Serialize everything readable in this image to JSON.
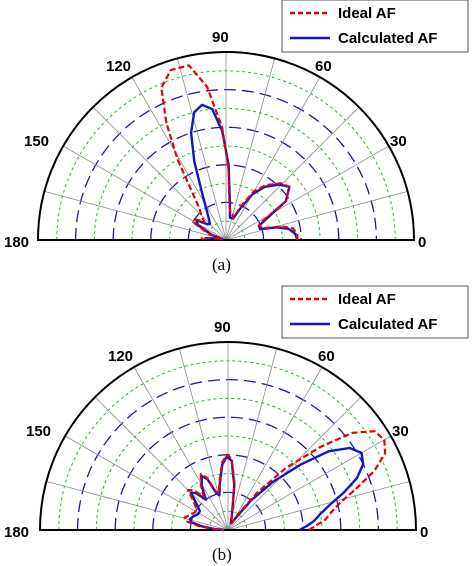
{
  "chart_data": [
    {
      "type": "polar",
      "panel": "(a)",
      "angle_labels": [
        "0",
        "30",
        "60",
        "90",
        "120",
        "150",
        "180"
      ],
      "legend": [
        "Ideal AF",
        "Calculated AF"
      ],
      "theta_range_deg": [
        0,
        180
      ],
      "r_range": [
        0,
        1
      ],
      "ideal_af": [
        {
          "theta": 0,
          "r": 0.38
        },
        {
          "theta": 5,
          "r": 0.38
        },
        {
          "theta": 10,
          "r": 0.36
        },
        {
          "theta": 14,
          "r": 0.3
        },
        {
          "theta": 16,
          "r": 0.24
        },
        {
          "theta": 18,
          "r": 0.2
        },
        {
          "theta": 20,
          "r": 0.2
        },
        {
          "theta": 23,
          "r": 0.19
        },
        {
          "theta": 26,
          "r": 0.2
        },
        {
          "theta": 33,
          "r": 0.38
        },
        {
          "theta": 40,
          "r": 0.44
        },
        {
          "theta": 46,
          "r": 0.42
        },
        {
          "theta": 54,
          "r": 0.36
        },
        {
          "theta": 60,
          "r": 0.3
        },
        {
          "theta": 66,
          "r": 0.2
        },
        {
          "theta": 72,
          "r": 0.12
        },
        {
          "theta": 76,
          "r": 0.14
        },
        {
          "theta": 80,
          "r": 0.14
        },
        {
          "theta": 84,
          "r": 0.18
        },
        {
          "theta": 88,
          "r": 0.38
        },
        {
          "theta": 92,
          "r": 0.6
        },
        {
          "theta": 97,
          "r": 0.82
        },
        {
          "theta": 102,
          "r": 0.95
        },
        {
          "theta": 108,
          "r": 0.95
        },
        {
          "theta": 113,
          "r": 0.88
        },
        {
          "theta": 117,
          "r": 0.7
        },
        {
          "theta": 121,
          "r": 0.5
        },
        {
          "theta": 125,
          "r": 0.32
        },
        {
          "theta": 130,
          "r": 0.22
        },
        {
          "theta": 136,
          "r": 0.18
        },
        {
          "theta": 140,
          "r": 0.15
        },
        {
          "theta": 146,
          "r": 0.2
        },
        {
          "theta": 152,
          "r": 0.19
        },
        {
          "theta": 160,
          "r": 0.1
        },
        {
          "theta": 165,
          "r": 0.02
        },
        {
          "theta": 170,
          "r": 0.05
        },
        {
          "theta": 175,
          "r": 0.13
        },
        {
          "theta": 180,
          "r": 0.12
        }
      ],
      "calculated_af": [
        {
          "theta": 0,
          "r": 0.38
        },
        {
          "theta": 5,
          "r": 0.37
        },
        {
          "theta": 10,
          "r": 0.34
        },
        {
          "theta": 14,
          "r": 0.28
        },
        {
          "theta": 16,
          "r": 0.22
        },
        {
          "theta": 18,
          "r": 0.19
        },
        {
          "theta": 20,
          "r": 0.19
        },
        {
          "theta": 23,
          "r": 0.19
        },
        {
          "theta": 26,
          "r": 0.22
        },
        {
          "theta": 33,
          "r": 0.38
        },
        {
          "theta": 40,
          "r": 0.44
        },
        {
          "theta": 46,
          "r": 0.41
        },
        {
          "theta": 54,
          "r": 0.35
        },
        {
          "theta": 60,
          "r": 0.28
        },
        {
          "theta": 66,
          "r": 0.18
        },
        {
          "theta": 72,
          "r": 0.12
        },
        {
          "theta": 76,
          "r": 0.12
        },
        {
          "theta": 80,
          "r": 0.12
        },
        {
          "theta": 84,
          "r": 0.2
        },
        {
          "theta": 88,
          "r": 0.4
        },
        {
          "theta": 92,
          "r": 0.58
        },
        {
          "theta": 96,
          "r": 0.7
        },
        {
          "theta": 100,
          "r": 0.73
        },
        {
          "theta": 104,
          "r": 0.7
        },
        {
          "theta": 108,
          "r": 0.6
        },
        {
          "theta": 112,
          "r": 0.45
        },
        {
          "theta": 117,
          "r": 0.28
        },
        {
          "theta": 122,
          "r": 0.2
        },
        {
          "theta": 128,
          "r": 0.15
        },
        {
          "theta": 135,
          "r": 0.12
        },
        {
          "theta": 140,
          "r": 0.13
        },
        {
          "theta": 146,
          "r": 0.19
        },
        {
          "theta": 152,
          "r": 0.17
        },
        {
          "theta": 160,
          "r": 0.08
        },
        {
          "theta": 165,
          "r": 0.02
        },
        {
          "theta": 170,
          "r": 0.05
        },
        {
          "theta": 175,
          "r": 0.11
        },
        {
          "theta": 180,
          "r": 0.1
        }
      ]
    },
    {
      "type": "polar",
      "panel": "(b)",
      "angle_labels": [
        "0",
        "30",
        "60",
        "90",
        "120",
        "150",
        "180"
      ],
      "legend": [
        "Ideal AF",
        "Calculated AF"
      ],
      "theta_range_deg": [
        0,
        180
      ],
      "r_range": [
        0,
        1
      ],
      "ideal_af": [
        {
          "theta": 0,
          "r": 0.43
        },
        {
          "theta": 3,
          "r": 0.47
        },
        {
          "theta": 6,
          "r": 0.52
        },
        {
          "theta": 10,
          "r": 0.56
        },
        {
          "theta": 14,
          "r": 0.62
        },
        {
          "theta": 18,
          "r": 0.72
        },
        {
          "theta": 22,
          "r": 0.84
        },
        {
          "theta": 26,
          "r": 0.93
        },
        {
          "theta": 30,
          "r": 0.96
        },
        {
          "theta": 34,
          "r": 0.94
        },
        {
          "theta": 38,
          "r": 0.84
        },
        {
          "theta": 42,
          "r": 0.66
        },
        {
          "theta": 47,
          "r": 0.45
        },
        {
          "theta": 52,
          "r": 0.25
        },
        {
          "theta": 57,
          "r": 0.1
        },
        {
          "theta": 62,
          "r": 0.04
        },
        {
          "theta": 68,
          "r": 0.04
        },
        {
          "theta": 75,
          "r": 0.08
        },
        {
          "theta": 82,
          "r": 0.25
        },
        {
          "theta": 87,
          "r": 0.38
        },
        {
          "theta": 91,
          "r": 0.4
        },
        {
          "theta": 95,
          "r": 0.36
        },
        {
          "theta": 100,
          "r": 0.26
        },
        {
          "theta": 104,
          "r": 0.2
        },
        {
          "theta": 108,
          "r": 0.22
        },
        {
          "theta": 112,
          "r": 0.3
        },
        {
          "theta": 116,
          "r": 0.33
        },
        {
          "theta": 121,
          "r": 0.28
        },
        {
          "theta": 126,
          "r": 0.22
        },
        {
          "theta": 131,
          "r": 0.28
        },
        {
          "theta": 135,
          "r": 0.3
        },
        {
          "theta": 140,
          "r": 0.24
        },
        {
          "theta": 146,
          "r": 0.2
        },
        {
          "theta": 152,
          "r": 0.2
        },
        {
          "theta": 159,
          "r": 0.22
        },
        {
          "theta": 164,
          "r": 0.24
        },
        {
          "theta": 168,
          "r": 0.23
        },
        {
          "theta": 172,
          "r": 0.16
        },
        {
          "theta": 176,
          "r": 0.08
        },
        {
          "theta": 180,
          "r": 0.02
        }
      ],
      "calculated_af": [
        {
          "theta": 0,
          "r": 0.38
        },
        {
          "theta": 3,
          "r": 0.42
        },
        {
          "theta": 6,
          "r": 0.46
        },
        {
          "theta": 10,
          "r": 0.5
        },
        {
          "theta": 14,
          "r": 0.56
        },
        {
          "theta": 18,
          "r": 0.65
        },
        {
          "theta": 22,
          "r": 0.74
        },
        {
          "theta": 26,
          "r": 0.8
        },
        {
          "theta": 30,
          "r": 0.82
        },
        {
          "theta": 34,
          "r": 0.78
        },
        {
          "theta": 38,
          "r": 0.68
        },
        {
          "theta": 42,
          "r": 0.52
        },
        {
          "theta": 47,
          "r": 0.35
        },
        {
          "theta": 52,
          "r": 0.2
        },
        {
          "theta": 57,
          "r": 0.08
        },
        {
          "theta": 62,
          "r": 0.04
        },
        {
          "theta": 68,
          "r": 0.04
        },
        {
          "theta": 75,
          "r": 0.08
        },
        {
          "theta": 82,
          "r": 0.24
        },
        {
          "theta": 87,
          "r": 0.37
        },
        {
          "theta": 91,
          "r": 0.39
        },
        {
          "theta": 95,
          "r": 0.35
        },
        {
          "theta": 100,
          "r": 0.25
        },
        {
          "theta": 104,
          "r": 0.19
        },
        {
          "theta": 108,
          "r": 0.21
        },
        {
          "theta": 112,
          "r": 0.29
        },
        {
          "theta": 116,
          "r": 0.32
        },
        {
          "theta": 121,
          "r": 0.27
        },
        {
          "theta": 126,
          "r": 0.2
        },
        {
          "theta": 131,
          "r": 0.26
        },
        {
          "theta": 135,
          "r": 0.28
        },
        {
          "theta": 140,
          "r": 0.22
        },
        {
          "theta": 146,
          "r": 0.18
        },
        {
          "theta": 152,
          "r": 0.18
        },
        {
          "theta": 159,
          "r": 0.2
        },
        {
          "theta": 164,
          "r": 0.21
        },
        {
          "theta": 168,
          "r": 0.2
        },
        {
          "theta": 172,
          "r": 0.14
        },
        {
          "theta": 176,
          "r": 0.07
        },
        {
          "theta": 180,
          "r": 0.02
        }
      ]
    }
  ],
  "colors": {
    "ideal": "#e60000",
    "calculated": "#1414c8",
    "ring_green": "#22bb22",
    "ring_blue": "#1a1aa8",
    "spoke": "#8c8c8c"
  }
}
